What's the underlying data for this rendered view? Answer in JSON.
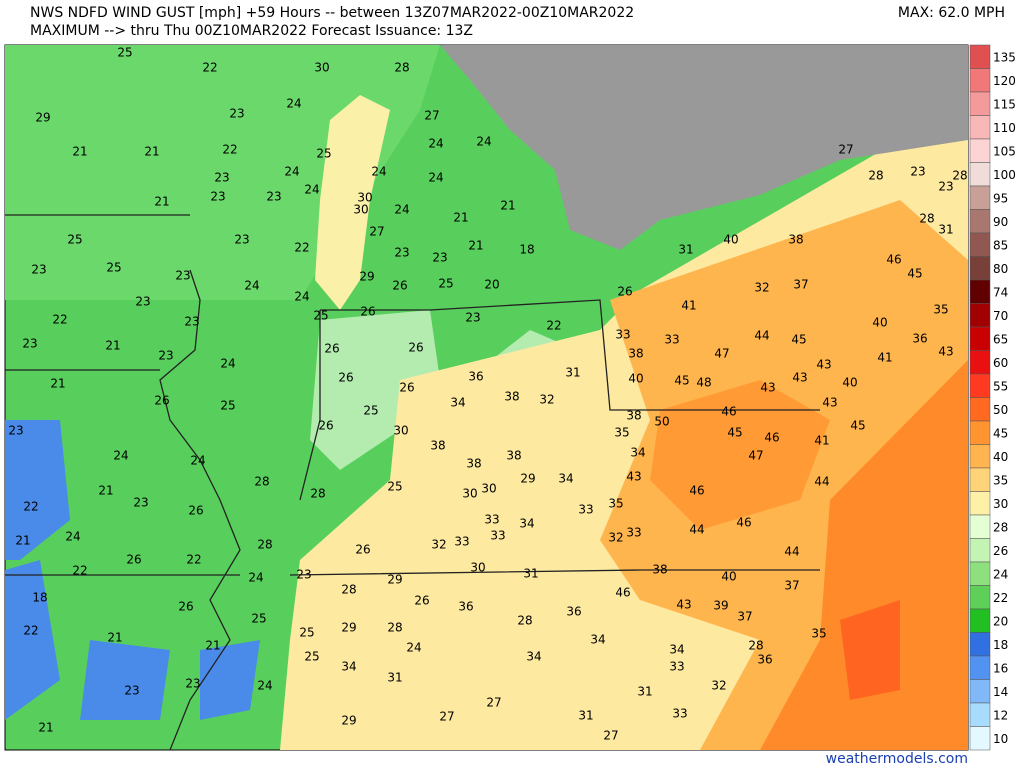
{
  "header": {
    "title": "NWS NDFD WIND GUST [mph] +59 Hours -- between 13Z07MAR2022-00Z10MAR2022",
    "subtitle": "MAXIMUM --> thru Thu 00Z10MAR2022  Forecast Issuance: 13Z",
    "max": "MAX: 62.0 MPH"
  },
  "legend": {
    "levels": [
      135,
      120,
      115,
      110,
      105,
      100,
      95,
      90,
      85,
      80,
      74,
      70,
      65,
      60,
      55,
      50,
      45,
      40,
      35,
      30,
      28,
      26,
      24,
      22,
      20,
      18,
      16,
      14,
      12,
      10
    ],
    "colors": [
      "#e05050",
      "#f07878",
      "#f49a9a",
      "#f8b8b8",
      "#fcd4d4",
      "#f0dcd8",
      "#c8a098",
      "#a87870",
      "#905850",
      "#784038",
      "#600000",
      "#a00000",
      "#c80000",
      "#e81010",
      "#ff3a20",
      "#ff6a20",
      "#ff9430",
      "#ffb450",
      "#ffd478",
      "#fff0a8",
      "#e4ffd4",
      "#c4f4b4",
      "#8ee07e",
      "#5ed05a",
      "#22bf22",
      "#3070e0",
      "#5292f0",
      "#80b8f8",
      "#a8dcff",
      "#e4f8ff"
    ]
  },
  "map": {
    "labels": [
      25,
      22,
      30,
      28,
      29,
      23,
      24,
      27,
      21,
      21,
      22,
      25,
      24,
      24,
      23,
      24,
      24,
      24,
      21,
      23,
      23,
      24,
      30,
      30,
      24,
      21,
      21,
      25,
      23,
      22,
      27,
      21,
      18,
      23,
      25,
      23,
      24,
      29,
      23,
      23,
      25,
      26,
      20,
      23,
      24,
      25,
      26,
      23,
      22,
      22,
      23,
      26,
      26,
      21,
      23,
      21,
      23,
      24,
      26,
      26,
      36,
      31,
      33,
      38,
      33,
      41,
      44,
      45,
      47,
      40,
      45,
      48,
      43,
      43,
      43,
      40,
      40,
      46,
      45,
      35,
      36,
      43,
      41,
      28,
      23,
      23,
      28,
      28,
      31,
      27,
      40,
      38,
      31,
      26,
      32,
      37,
      26,
      25,
      34,
      38,
      32,
      25,
      23,
      26,
      30,
      38,
      38,
      35,
      50,
      46,
      45,
      46,
      43,
      45,
      41,
      24,
      24,
      38,
      38,
      34,
      47,
      43,
      44,
      28,
      34,
      29,
      30,
      30,
      21,
      23,
      22,
      25,
      28,
      26,
      46,
      33,
      34,
      33,
      35,
      21,
      24,
      28,
      32,
      33,
      33,
      44,
      46,
      26,
      22,
      26,
      32,
      33,
      44,
      22,
      24,
      23,
      29,
      30,
      31,
      38,
      40,
      37,
      18,
      28,
      26,
      36,
      36,
      46,
      43,
      39,
      26,
      25,
      28,
      37,
      22,
      21,
      21,
      25,
      29,
      28,
      34,
      28,
      35,
      25,
      34,
      24,
      34,
      34,
      36,
      23,
      23,
      24,
      31,
      33,
      32,
      21,
      29,
      27,
      27,
      31,
      31,
      33,
      27
    ]
  },
  "footer": {
    "credit": "weathermodels.com"
  }
}
